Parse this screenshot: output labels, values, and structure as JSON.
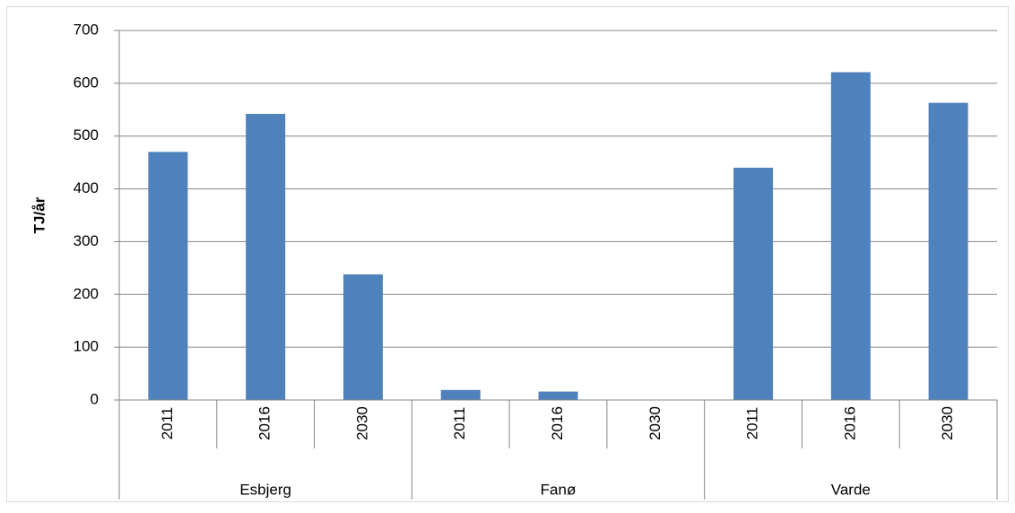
{
  "chart_data": {
    "type": "bar",
    "y_label": "TJ/år",
    "groups": [
      {
        "name": "Esbjerg",
        "categories": [
          "2011",
          "2016",
          "2030"
        ],
        "values": [
          470,
          542,
          238
        ]
      },
      {
        "name": "Fanø",
        "categories": [
          "2011",
          "2016",
          "2030"
        ],
        "values": [
          19,
          16,
          0
        ]
      },
      {
        "name": "Varde",
        "categories": [
          "2011",
          "2016",
          "2030"
        ],
        "values": [
          440,
          621,
          563
        ]
      }
    ],
    "color": "#4f81bd",
    "ylim": [
      0,
      700
    ],
    "yticks": [
      0,
      100,
      200,
      300,
      400,
      500,
      600,
      700
    ],
    "grid": true
  }
}
